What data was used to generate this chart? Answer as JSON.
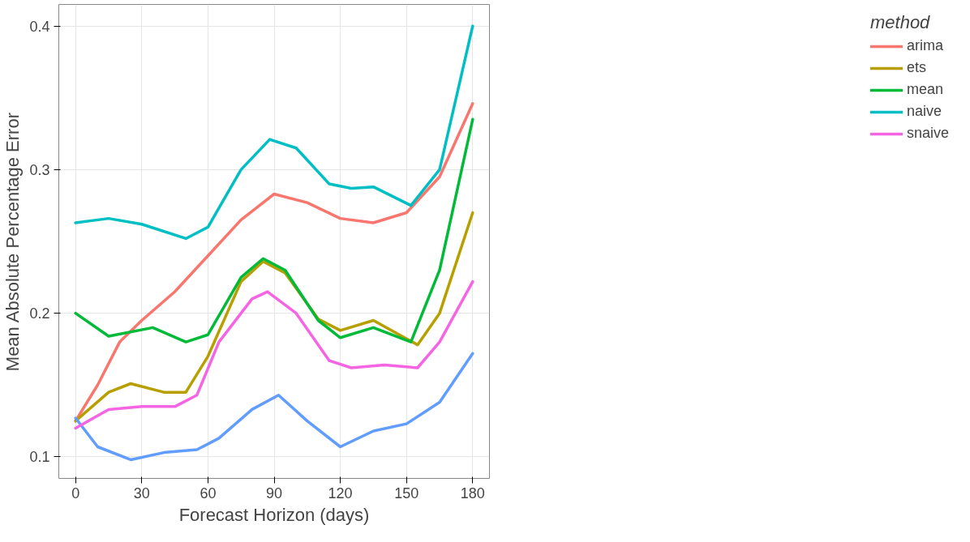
{
  "chart_data": {
    "type": "line",
    "xlabel": "Forecast Horizon (days)",
    "ylabel": "Mean Absolute Percentage Error",
    "legend_title": "method",
    "legend": "right",
    "grid": true,
    "line_style": "solid",
    "xlim": [
      -7.6,
      187.6
    ],
    "ylim": [
      0.085,
      0.415
    ],
    "xticks": [
      0,
      30,
      60,
      90,
      120,
      150,
      180
    ],
    "yticks": [
      0.1,
      0.2,
      0.3,
      0.4
    ],
    "series": [
      {
        "name": "arima",
        "color": "#f8766d",
        "x": [
          0,
          10,
          20,
          30,
          45,
          60,
          75,
          90,
          105,
          120,
          135,
          150,
          165,
          180
        ],
        "values": [
          0.125,
          0.15,
          0.18,
          0.195,
          0.215,
          0.24,
          0.265,
          0.283,
          0.277,
          0.266,
          0.263,
          0.27,
          0.295,
          0.346
        ]
      },
      {
        "name": "ets",
        "color": "#b79f00",
        "x": [
          0,
          15,
          25,
          40,
          50,
          60,
          75,
          85,
          95,
          110,
          120,
          135,
          155,
          165,
          180
        ],
        "values": [
          0.125,
          0.145,
          0.151,
          0.145,
          0.145,
          0.17,
          0.222,
          0.236,
          0.228,
          0.196,
          0.188,
          0.195,
          0.178,
          0.2,
          0.27
        ]
      },
      {
        "name": "mean",
        "color": "#00ba38",
        "x": [
          0,
          15,
          35,
          50,
          60,
          75,
          85,
          95,
          110,
          120,
          135,
          152,
          165,
          180
        ],
        "values": [
          0.2,
          0.184,
          0.19,
          0.18,
          0.185,
          0.225,
          0.238,
          0.23,
          0.195,
          0.183,
          0.19,
          0.18,
          0.23,
          0.335
        ]
      },
      {
        "name": "naive",
        "color": "#00bfc4",
        "x": [
          0,
          15,
          30,
          50,
          60,
          75,
          88,
          100,
          115,
          125,
          135,
          152,
          165,
          180
        ],
        "values": [
          0.263,
          0.266,
          0.262,
          0.252,
          0.26,
          0.3,
          0.321,
          0.315,
          0.29,
          0.287,
          0.288,
          0.275,
          0.3,
          0.4
        ]
      },
      {
        "color": "#619cff",
        "x": [
          0,
          10,
          25,
          40,
          55,
          65,
          80,
          92,
          105,
          120,
          135,
          150,
          165,
          180
        ],
        "values": [
          0.127,
          0.107,
          0.098,
          0.103,
          0.105,
          0.113,
          0.133,
          0.143,
          0.125,
          0.107,
          0.118,
          0.123,
          0.138,
          0.172
        ]
      },
      {
        "name": "snaive",
        "color": "#f564e3",
        "x": [
          0,
          15,
          30,
          45,
          55,
          65,
          80,
          87,
          100,
          115,
          125,
          140,
          155,
          165,
          180
        ],
        "values": [
          0.12,
          0.133,
          0.135,
          0.135,
          0.143,
          0.18,
          0.21,
          0.215,
          0.2,
          0.167,
          0.162,
          0.164,
          0.162,
          0.18,
          0.222
        ]
      }
    ]
  }
}
